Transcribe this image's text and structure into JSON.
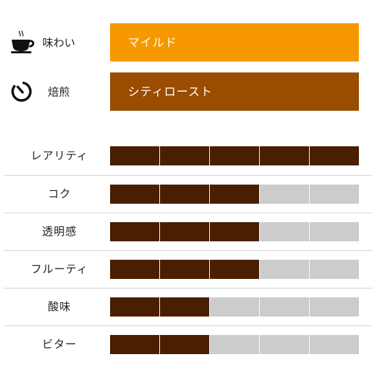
{
  "profile": {
    "taste": {
      "label": "味わい",
      "value": "マイルド",
      "icon": "hot-cup-icon",
      "color": "#f89800"
    },
    "roast": {
      "label": "焙煎",
      "value": "シティロースト",
      "icon": "timer-icon",
      "color": "#9a4c00"
    }
  },
  "ratings": {
    "max": 5,
    "filled_color": "#4a1e00",
    "empty_color": "#cccccc",
    "items": [
      {
        "label": "レアリティ",
        "level": 5
      },
      {
        "label": "コク",
        "level": 3
      },
      {
        "label": "透明感",
        "level": 3
      },
      {
        "label": "フルーティ",
        "level": 3
      },
      {
        "label": "酸味",
        "level": 2
      },
      {
        "label": "ビター",
        "level": 2
      }
    ]
  }
}
